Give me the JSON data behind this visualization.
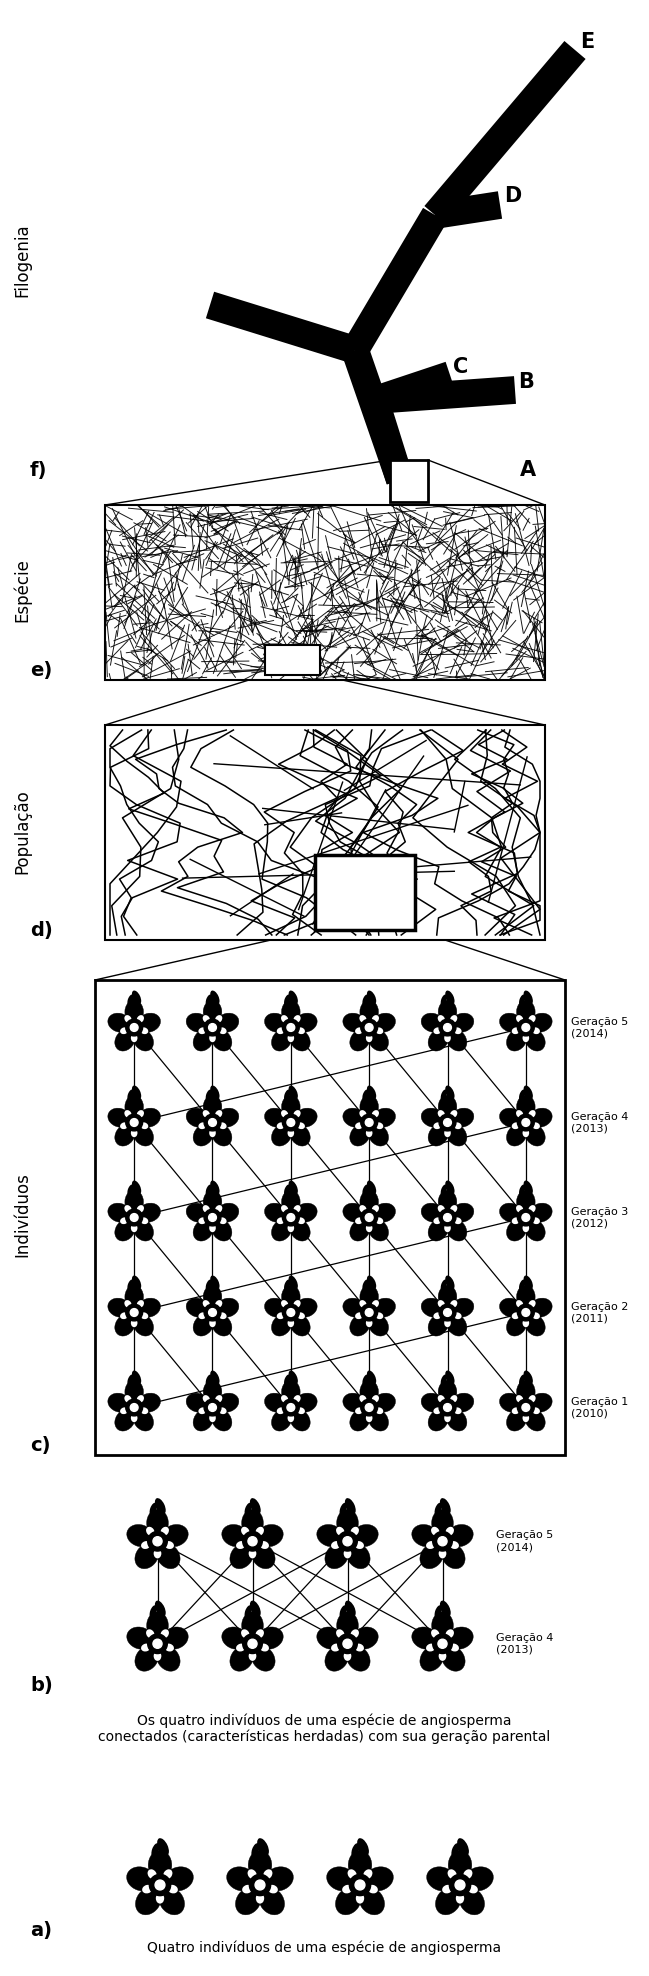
{
  "bg_color": "#ffffff",
  "text_color": "#000000",
  "ylabel_filogenia": "Filogenia",
  "ylabel_especie": "Espécie",
  "ylabel_populacao": "População",
  "ylabel_individuos": "Indivíduos",
  "geracao_labels_c": [
    "Geração 5\n(2014)",
    "Geração 4\n(2013)",
    "Geração 3\n(2012)",
    "Geração 2\n(2011)",
    "Geração 1\n(2010)"
  ],
  "geracao_labels_b": [
    "Geração 5\n(2014)",
    "Geração 4\n(2013)"
  ],
  "caption_b": "Os quatro indivíduos de uma espécie de angiosperma\nconectados (características herdadas) com sua geração parental",
  "caption_a": "Quatro indivíduos de uma espécie de angiosperma",
  "tree_lw": 20,
  "fig_width": 6.49,
  "fig_height": 19.76,
  "dpi": 100
}
